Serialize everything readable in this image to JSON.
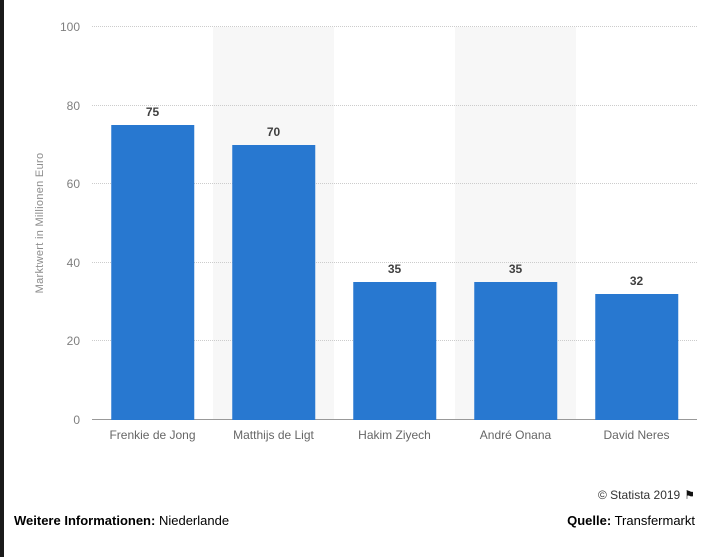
{
  "chart_data": {
    "type": "bar",
    "title": "",
    "categories": [
      "Frenkie de Jong",
      "Matthijs de Ligt",
      "Hakim Ziyech",
      "André Onana",
      "David Neres"
    ],
    "values": [
      75,
      70,
      35,
      35,
      32
    ],
    "xlabel": "",
    "ylabel": "Marktwert in Millionen Euro",
    "ylim": [
      0,
      100
    ],
    "yticks": [
      0,
      20,
      40,
      60,
      80,
      100
    ],
    "bar_color": "#2878d0",
    "stripe_color": "#f7f7f7",
    "grid": true,
    "legend": false
  },
  "footer": {
    "more_info_label": "Weitere Informationen:",
    "more_info_value": "Niederlande",
    "copyright": "© Statista 2019",
    "flag_icon": "⚑",
    "source_label": "Quelle:",
    "source_value": "Transfermarkt"
  }
}
